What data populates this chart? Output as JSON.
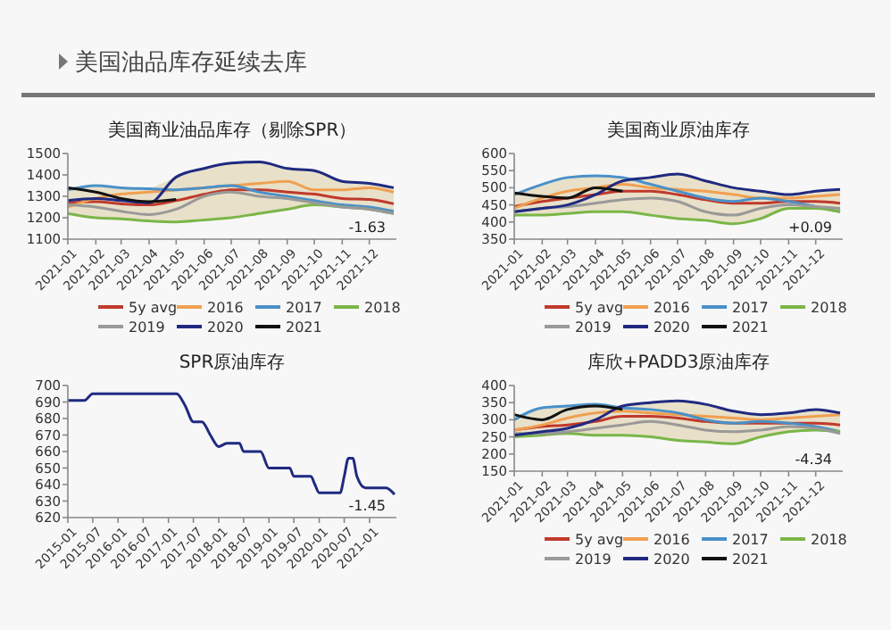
{
  "chart_data": [
    {
      "type": "other",
      "title": "美国油品库存延续去库"
    },
    {
      "type": "line",
      "title": "美国商业油品库存（剔除SPR）",
      "x": [
        "2021-01-01",
        "2021-02-01",
        "2021-03-01",
        "2021-04-01",
        "2021-05-01",
        "2021-06-01",
        "2021-07-01",
        "2021-08-01",
        "2021-09-01",
        "2021-10-01",
        "2021-11-01",
        "2021-12-01",
        "2021-12-28"
      ],
      "xlim": [
        "2021-01-01",
        "2021-12-31"
      ],
      "xticks": [
        {
          "value": "2021-01-01",
          "label": "2021-01"
        },
        {
          "value": "2021-02-01",
          "label": "2021-02"
        },
        {
          "value": "2021-03-01",
          "label": "2021-03"
        },
        {
          "value": "2021-04-01",
          "label": "2021-04"
        },
        {
          "value": "2021-05-01",
          "label": "2021-05"
        },
        {
          "value": "2021-06-01",
          "label": "2021-06"
        },
        {
          "value": "2021-07-01",
          "label": "2021-07"
        },
        {
          "value": "2021-08-01",
          "label": "2021-08"
        },
        {
          "value": "2021-09-01",
          "label": "2021-09"
        },
        {
          "value": "2021-10-01",
          "label": "2021-10"
        },
        {
          "value": "2021-11-01",
          "label": "2021-11"
        },
        {
          "value": "2021-12-01",
          "label": "2021-12"
        }
      ],
      "ylim": [
        1100,
        1500
      ],
      "yticks": [
        1100,
        1200,
        1300,
        1400,
        1500
      ],
      "legend": "bottom",
      "annotations": [
        "-1.63"
      ],
      "series": [
        {
          "name": "5y avg",
          "color": "#c0392b",
          "values": [
            1270,
            1275,
            1265,
            1260,
            1280,
            1310,
            1330,
            1330,
            1320,
            1310,
            1290,
            1285,
            1265
          ],
          "lower": [
            1220,
            1200,
            1195,
            1185,
            1180,
            1190,
            1200,
            1220,
            1240,
            1260,
            1250,
            1240,
            1220
          ],
          "upper": [
            1330,
            1350,
            1340,
            1335,
            1390,
            1430,
            1455,
            1460,
            1430,
            1420,
            1370,
            1360,
            1340
          ]
        },
        {
          "name": "2016",
          "color": "#f0a050",
          "values": [
            1250,
            1290,
            1310,
            1320,
            1330,
            1340,
            1350,
            1360,
            1370,
            1330,
            1330,
            1340,
            1320
          ]
        },
        {
          "name": "2017",
          "color": "#4a90c8",
          "values": [
            1330,
            1350,
            1340,
            1335,
            1330,
            1340,
            1350,
            1320,
            1300,
            1280,
            1260,
            1250,
            1230
          ]
        },
        {
          "name": "2018",
          "color": "#7ab648",
          "values": [
            1220,
            1200,
            1195,
            1185,
            1180,
            1190,
            1200,
            1220,
            1240,
            1260,
            1250,
            1240,
            1220
          ]
        },
        {
          "name": "2019",
          "color": "#999999",
          "values": [
            1260,
            1250,
            1230,
            1215,
            1240,
            1300,
            1320,
            1300,
            1290,
            1270,
            1250,
            1240,
            1220
          ]
        },
        {
          "name": "2020",
          "color": "#1f2a80",
          "values": [
            1280,
            1290,
            1280,
            1270,
            1390,
            1430,
            1455,
            1460,
            1430,
            1420,
            1370,
            1360,
            1340
          ]
        },
        {
          "name": "2021",
          "color": "#111111",
          "values": [
            1340,
            1320,
            1290,
            1275,
            1285,
            null,
            null,
            null,
            null,
            null,
            null,
            null,
            null
          ]
        }
      ]
    },
    {
      "type": "line",
      "title": "美国商业原油库存",
      "x": [
        "2021-01-01",
        "2021-02-01",
        "2021-03-01",
        "2021-04-01",
        "2021-05-01",
        "2021-06-01",
        "2021-07-01",
        "2021-08-01",
        "2021-09-01",
        "2021-10-01",
        "2021-11-01",
        "2021-12-01",
        "2021-12-28"
      ],
      "xlim": [
        "2021-01-01",
        "2021-12-31"
      ],
      "xticks": [
        {
          "value": "2021-01-01",
          "label": "2021-01"
        },
        {
          "value": "2021-02-01",
          "label": "2021-02"
        },
        {
          "value": "2021-03-01",
          "label": "2021-03"
        },
        {
          "value": "2021-04-01",
          "label": "2021-04"
        },
        {
          "value": "2021-05-01",
          "label": "2021-05"
        },
        {
          "value": "2021-06-01",
          "label": "2021-06"
        },
        {
          "value": "2021-07-01",
          "label": "2021-07"
        },
        {
          "value": "2021-08-01",
          "label": "2021-08"
        },
        {
          "value": "2021-09-01",
          "label": "2021-09"
        },
        {
          "value": "2021-10-01",
          "label": "2021-10"
        },
        {
          "value": "2021-11-01",
          "label": "2021-11"
        },
        {
          "value": "2021-12-01",
          "label": "2021-12"
        }
      ],
      "ylim": [
        350,
        600
      ],
      "yticks": [
        350,
        400,
        450,
        500,
        550,
        600
      ],
      "legend": "bottom",
      "annotations": [
        "+0.09"
      ],
      "series": [
        {
          "name": "5y avg",
          "color": "#c0392b",
          "values": [
            445,
            460,
            470,
            480,
            490,
            490,
            480,
            465,
            455,
            455,
            460,
            460,
            455
          ],
          "lower": [
            420,
            420,
            425,
            430,
            430,
            420,
            410,
            405,
            395,
            410,
            440,
            440,
            430
          ],
          "upper": [
            480,
            510,
            530,
            535,
            530,
            530,
            540,
            520,
            500,
            490,
            480,
            490,
            495
          ]
        },
        {
          "name": "2016",
          "color": "#f0a050",
          "values": [
            440,
            470,
            490,
            500,
            510,
            500,
            495,
            490,
            480,
            470,
            470,
            475,
            480
          ]
        },
        {
          "name": "2017",
          "color": "#4a90c8",
          "values": [
            480,
            510,
            530,
            535,
            530,
            510,
            490,
            470,
            460,
            470,
            460,
            445,
            430
          ]
        },
        {
          "name": "2018",
          "color": "#7ab648",
          "values": [
            420,
            420,
            425,
            430,
            430,
            420,
            410,
            405,
            395,
            410,
            440,
            440,
            430
          ]
        },
        {
          "name": "2019",
          "color": "#999999",
          "values": [
            430,
            440,
            445,
            455,
            465,
            470,
            460,
            430,
            420,
            440,
            450,
            445,
            440
          ]
        },
        {
          "name": "2020",
          "color": "#1f2a80",
          "values": [
            430,
            440,
            450,
            480,
            520,
            530,
            540,
            520,
            500,
            490,
            480,
            490,
            495
          ]
        },
        {
          "name": "2021",
          "color": "#111111",
          "values": [
            485,
            475,
            470,
            500,
            490,
            null,
            null,
            null,
            null,
            null,
            null,
            null,
            null
          ]
        }
      ]
    },
    {
      "type": "line",
      "title": "SPR原油库存",
      "x": [
        "2015-01-01",
        "2015-05-01",
        "2015-07-01",
        "2017-03-01",
        "2017-05-01",
        "2017-07-01",
        "2017-09-01",
        "2017-11-01",
        "2018-01-01",
        "2018-03-01",
        "2018-06-01",
        "2018-07-01",
        "2018-11-01",
        "2019-01-01",
        "2019-06-01",
        "2019-07-01",
        "2019-11-01",
        "2019-12-01",
        "2020-01-01",
        "2020-06-01",
        "2020-07-01",
        "2020-08-01",
        "2020-09-01",
        "2020-10-01",
        "2020-12-01",
        "2021-05-01",
        "2021-07-01"
      ],
      "xlim": [
        "2015-01-01",
        "2021-07-15"
      ],
      "xticks": [
        {
          "value": "2015-01-01",
          "label": "2015-01"
        },
        {
          "value": "2015-07-01",
          "label": "2015-07"
        },
        {
          "value": "2016-01-01",
          "label": "2016-01"
        },
        {
          "value": "2016-07-01",
          "label": "2016-07"
        },
        {
          "value": "2017-01-01",
          "label": "2017-01"
        },
        {
          "value": "2017-07-01",
          "label": "2017-07"
        },
        {
          "value": "2018-01-01",
          "label": "2018-01"
        },
        {
          "value": "2018-07-01",
          "label": "2018-07"
        },
        {
          "value": "2019-01-01",
          "label": "2019-01"
        },
        {
          "value": "2019-07-01",
          "label": "2019-07"
        },
        {
          "value": "2020-01-01",
          "label": "2020-01"
        },
        {
          "value": "2020-07-01",
          "label": "2020-07"
        },
        {
          "value": "2021-01-01",
          "label": "2021-01"
        }
      ],
      "ylim": [
        620,
        700
      ],
      "yticks": [
        620,
        630,
        640,
        650,
        660,
        670,
        680,
        690,
        700
      ],
      "annotations": [
        "-1.45"
      ],
      "series": [
        {
          "color": "#1f2a80",
          "values": [
            691,
            691,
            695,
            695,
            688,
            678,
            678,
            670,
            663,
            665,
            665,
            660,
            660,
            650,
            650,
            645,
            645,
            640,
            635,
            635,
            645,
            656,
            656,
            645,
            638,
            638,
            634
          ]
        }
      ]
    },
    {
      "type": "line",
      "title": "库欣+PADD3原油库存",
      "x": [
        "2021-01-01",
        "2021-02-01",
        "2021-03-01",
        "2021-04-01",
        "2021-05-01",
        "2021-06-01",
        "2021-07-01",
        "2021-08-01",
        "2021-09-01",
        "2021-10-01",
        "2021-11-01",
        "2021-12-01",
        "2021-12-28"
      ],
      "xlim": [
        "2021-01-01",
        "2021-12-31"
      ],
      "xticks": [
        {
          "value": "2021-01-01",
          "label": "2021-01"
        },
        {
          "value": "2021-02-01",
          "label": "2021-02"
        },
        {
          "value": "2021-03-01",
          "label": "2021-03"
        },
        {
          "value": "2021-04-01",
          "label": "2021-04"
        },
        {
          "value": "2021-05-01",
          "label": "2021-05"
        },
        {
          "value": "2021-06-01",
          "label": "2021-06"
        },
        {
          "value": "2021-07-01",
          "label": "2021-07"
        },
        {
          "value": "2021-08-01",
          "label": "2021-08"
        },
        {
          "value": "2021-09-01",
          "label": "2021-09"
        },
        {
          "value": "2021-10-01",
          "label": "2021-10"
        },
        {
          "value": "2021-11-01",
          "label": "2021-11"
        },
        {
          "value": "2021-12-01",
          "label": "2021-12"
        }
      ],
      "ylim": [
        150,
        400
      ],
      "yticks": [
        150,
        200,
        250,
        300,
        350,
        400
      ],
      "legend": "bottom",
      "annotations": [
        "-4.34"
      ],
      "series": [
        {
          "name": "5y avg",
          "color": "#c0392b",
          "values": [
            270,
            280,
            285,
            295,
            310,
            310,
            305,
            295,
            290,
            290,
            290,
            290,
            285
          ],
          "lower": [
            250,
            255,
            260,
            255,
            255,
            250,
            240,
            235,
            230,
            250,
            265,
            270,
            260
          ],
          "upper": [
            300,
            335,
            340,
            345,
            340,
            350,
            355,
            345,
            325,
            315,
            320,
            330,
            320
          ]
        },
        {
          "name": "2016",
          "color": "#f0a050",
          "values": [
            270,
            285,
            305,
            320,
            325,
            320,
            315,
            310,
            305,
            300,
            305,
            310,
            315
          ]
        },
        {
          "name": "2017",
          "color": "#4a90c8",
          "values": [
            300,
            335,
            340,
            345,
            335,
            330,
            320,
            300,
            290,
            295,
            290,
            280,
            265
          ]
        },
        {
          "name": "2018",
          "color": "#7ab648",
          "values": [
            250,
            255,
            260,
            255,
            255,
            250,
            240,
            235,
            230,
            250,
            265,
            270,
            265
          ]
        },
        {
          "name": "2019",
          "color": "#999999",
          "values": [
            260,
            260,
            265,
            275,
            285,
            295,
            285,
            270,
            265,
            270,
            280,
            275,
            260
          ]
        },
        {
          "name": "2020",
          "color": "#1f2a80",
          "values": [
            255,
            265,
            275,
            300,
            340,
            350,
            355,
            345,
            325,
            315,
            320,
            330,
            320
          ]
        },
        {
          "name": "2021",
          "color": "#111111",
          "values": [
            315,
            300,
            330,
            340,
            330,
            null,
            null,
            null,
            null,
            null,
            null,
            null,
            null
          ]
        }
      ]
    }
  ]
}
